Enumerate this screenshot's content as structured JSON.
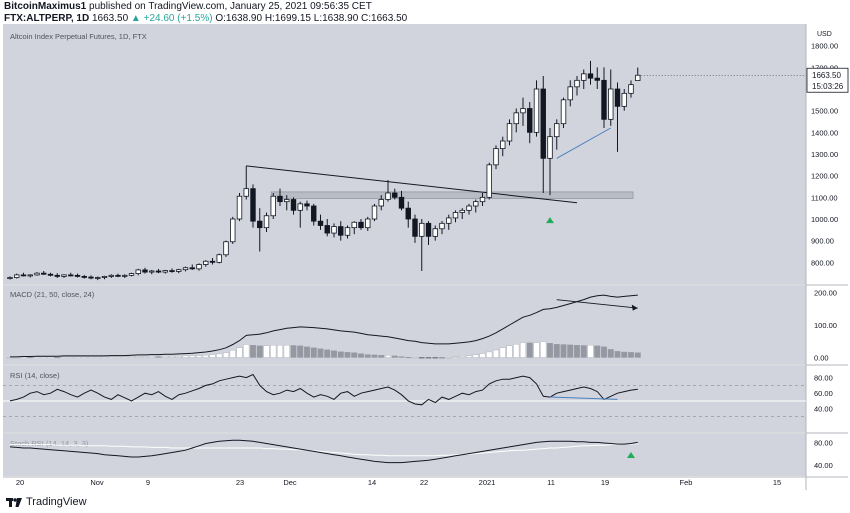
{
  "header": {
    "author": "BitcoinMaximus1",
    "published_text": "published on TradingView.com, January 25, 2021 09:56:35 CET",
    "symbol": "FTX:ALTPERP, 1D",
    "last": "1663.50",
    "change_arrow": "▲",
    "change": "+24.60 (+1.5%)",
    "o_label": "O:",
    "o": "1638.90",
    "h_label": "H:",
    "h": "1699.15",
    "l_label": "L:",
    "l": "1638.90",
    "c_label": "C:",
    "c": "1663.50"
  },
  "footer": {
    "brand": "TradingView"
  },
  "chart_data": [
    {
      "type": "candlestick",
      "title": "Altcoin Index Perpetual Futures, 1D, FTX",
      "currency_label": "USD",
      "ylim": [
        700,
        1900
      ],
      "y_ticks": [
        "800.00",
        "900.00",
        "1000.00",
        "1100.00",
        "1200.00",
        "1300.00",
        "1400.00",
        "1500.00",
        "1600.00",
        "1700.00",
        "1800.00"
      ],
      "price_label": "1663.50",
      "countdown_label": "15:03:26",
      "x_tick_labels": [
        "20",
        "Nov",
        "9",
        "23",
        "Dec",
        "14",
        "22",
        "2021",
        "11",
        "19",
        "Feb",
        "15"
      ],
      "ohlc": [
        [
          725,
          735,
          720,
          730
        ],
        [
          730,
          748,
          725,
          742
        ],
        [
          742,
          752,
          735,
          738
        ],
        [
          738,
          745,
          730,
          742
        ],
        [
          742,
          755,
          738,
          750
        ],
        [
          750,
          760,
          742,
          745
        ],
        [
          745,
          752,
          735,
          740
        ],
        [
          740,
          750,
          728,
          735
        ],
        [
          735,
          745,
          728,
          742
        ],
        [
          742,
          752,
          735,
          740
        ],
        [
          740,
          748,
          730,
          735
        ],
        [
          735,
          742,
          725,
          732
        ],
        [
          732,
          740,
          722,
          728
        ],
        [
          728,
          735,
          718,
          730
        ],
        [
          730,
          738,
          722,
          735
        ],
        [
          735,
          745,
          728,
          740
        ],
        [
          740,
          748,
          732,
          736
        ],
        [
          736,
          745,
          728,
          740
        ],
        [
          740,
          752,
          735,
          748
        ],
        [
          748,
          770,
          740,
          765
        ],
        [
          765,
          775,
          748,
          755
        ],
        [
          755,
          765,
          745,
          760
        ],
        [
          760,
          770,
          750,
          755
        ],
        [
          755,
          765,
          748,
          762
        ],
        [
          762,
          772,
          752,
          758
        ],
        [
          758,
          770,
          750,
          766
        ],
        [
          766,
          780,
          758,
          775
        ],
        [
          775,
          790,
          765,
          770
        ],
        [
          770,
          795,
          762,
          790
        ],
        [
          790,
          810,
          780,
          805
        ],
        [
          805,
          820,
          790,
          800
        ],
        [
          800,
          840,
          795,
          835
        ],
        [
          835,
          900,
          825,
          895
        ],
        [
          895,
          1010,
          885,
          1000
        ],
        [
          1000,
          1120,
          990,
          1105
        ],
        [
          1105,
          1245,
          1090,
          1140
        ],
        [
          1140,
          1160,
          960,
          990
        ],
        [
          990,
          1050,
          850,
          960
        ],
        [
          960,
          1030,
          940,
          1015
        ],
        [
          1015,
          1120,
          1000,
          1105
        ],
        [
          1105,
          1140,
          1060,
          1080
        ],
        [
          1080,
          1110,
          1040,
          1090
        ],
        [
          1090,
          1100,
          1020,
          1040
        ],
        [
          1040,
          1080,
          960,
          1070
        ],
        [
          1070,
          1085,
          1040,
          1060
        ],
        [
          1060,
          1070,
          970,
          990
        ],
        [
          990,
          1020,
          950,
          970
        ],
        [
          970,
          1000,
          920,
          935
        ],
        [
          935,
          980,
          915,
          965
        ],
        [
          965,
          990,
          900,
          925
        ],
        [
          925,
          970,
          910,
          960
        ],
        [
          960,
          990,
          930,
          985
        ],
        [
          985,
          1000,
          950,
          960
        ],
        [
          960,
          1010,
          945,
          1000
        ],
        [
          1000,
          1070,
          990,
          1060
        ],
        [
          1060,
          1110,
          1040,
          1090
        ],
        [
          1090,
          1180,
          1080,
          1120
        ],
        [
          1120,
          1140,
          1090,
          1100
        ],
        [
          1100,
          1130,
          1040,
          1050
        ],
        [
          1050,
          1080,
          960,
          1000
        ],
        [
          1000,
          1020,
          890,
          920
        ],
        [
          920,
          1000,
          760,
          980
        ],
        [
          980,
          990,
          880,
          920
        ],
        [
          920,
          970,
          900,
          955
        ],
        [
          955,
          990,
          930,
          980
        ],
        [
          980,
          1020,
          950,
          1005
        ],
        [
          1005,
          1040,
          985,
          1030
        ],
        [
          1030,
          1050,
          1000,
          1040
        ],
        [
          1040,
          1070,
          1020,
          1060
        ],
        [
          1060,
          1090,
          1030,
          1080
        ],
        [
          1080,
          1120,
          1060,
          1100
        ],
        [
          1100,
          1260,
          1090,
          1250
        ],
        [
          1250,
          1340,
          1230,
          1325
        ],
        [
          1325,
          1380,
          1290,
          1360
        ],
        [
          1360,
          1460,
          1340,
          1440
        ],
        [
          1440,
          1510,
          1400,
          1490
        ],
        [
          1490,
          1560,
          1430,
          1510
        ],
        [
          1510,
          1540,
          1350,
          1400
        ],
        [
          1400,
          1640,
          1380,
          1600
        ],
        [
          1600,
          1660,
          1120,
          1280
        ],
        [
          1280,
          1420,
          1110,
          1380
        ],
        [
          1380,
          1460,
          1320,
          1440
        ],
        [
          1440,
          1560,
          1420,
          1550
        ],
        [
          1550,
          1640,
          1520,
          1610
        ],
        [
          1610,
          1660,
          1570,
          1640
        ],
        [
          1640,
          1690,
          1600,
          1670
        ],
        [
          1670,
          1730,
          1620,
          1650
        ],
        [
          1650,
          1700,
          1600,
          1640
        ],
        [
          1640,
          1700,
          1420,
          1460
        ],
        [
          1460,
          1690,
          1430,
          1600
        ],
        [
          1600,
          1630,
          1310,
          1520
        ],
        [
          1520,
          1600,
          1500,
          1580
        ],
        [
          1580,
          1640,
          1560,
          1620
        ],
        [
          1638.9,
          1699.15,
          1638.9,
          1663.5
        ]
      ]
    },
    {
      "type": "line",
      "title": "MACD (21, 50, close, 24)",
      "ylim": [
        -20,
        220
      ],
      "y_ticks": [
        "200.00",
        "100.00",
        "0.00"
      ],
      "series": [
        {
          "values": [
            2,
            2,
            3,
            3,
            4,
            4,
            4,
            4,
            5,
            5,
            5,
            5,
            5,
            5,
            5,
            6,
            6,
            6,
            7,
            8,
            8,
            9,
            9,
            10,
            10,
            11,
            12,
            13,
            15,
            17,
            20,
            24,
            30,
            40,
            52,
            68,
            70,
            72,
            76,
            82,
            86,
            90,
            92,
            94,
            93,
            92,
            90,
            88,
            85,
            82,
            80,
            78,
            74,
            70,
            68,
            66,
            64,
            60,
            56,
            52,
            50,
            46,
            44,
            42,
            42,
            42,
            44,
            46,
            48,
            52,
            58,
            66,
            76,
            88,
            100,
            112,
            124,
            130,
            138,
            148,
            150,
            154,
            160,
            166,
            172,
            178,
            186,
            190,
            192,
            188,
            186,
            188,
            190,
            192
          ]
        },
        {
          "values": [
            1,
            1,
            1,
            2,
            2,
            2,
            2,
            3,
            3,
            3,
            3,
            3,
            3,
            3,
            3,
            4,
            4,
            4,
            4,
            5,
            5,
            5,
            6,
            6,
            6,
            7,
            7,
            8,
            9,
            10,
            11,
            13,
            15,
            18,
            22,
            28,
            32,
            36,
            40,
            44,
            48,
            52,
            55,
            58,
            60,
            62,
            63,
            64,
            64,
            64,
            64,
            63,
            62,
            61,
            60,
            59,
            57,
            55,
            53,
            51,
            49,
            47,
            45,
            44,
            43,
            42,
            42,
            42,
            43,
            44,
            46,
            49,
            53,
            58,
            64,
            71,
            78,
            85,
            92,
            99,
            106,
            113,
            120,
            127,
            134,
            141,
            148,
            154,
            159,
            163,
            167,
            171,
            174,
            177
          ]
        }
      ]
    },
    {
      "type": "line",
      "title": "RSI (14, close)",
      "ylim": [
        10,
        95
      ],
      "y_ticks": [
        "80.00",
        "60.00",
        "40.00"
      ],
      "series": [
        {
          "values": [
            50,
            52,
            55,
            60,
            62,
            58,
            60,
            65,
            62,
            58,
            55,
            60,
            64,
            60,
            55,
            52,
            58,
            54,
            50,
            55,
            60,
            58,
            62,
            56,
            52,
            58,
            60,
            63,
            66,
            70,
            72,
            76,
            78,
            80,
            82,
            80,
            84,
            70,
            62,
            58,
            60,
            64,
            62,
            66,
            60,
            55,
            58,
            56,
            52,
            60,
            62,
            56,
            60,
            62,
            64,
            66,
            68,
            64,
            58,
            50,
            46,
            45,
            52,
            48,
            55,
            52,
            56,
            60,
            58,
            62,
            64,
            72,
            76,
            78,
            78,
            80,
            82,
            80,
            72,
            56,
            55,
            60,
            62,
            64,
            66,
            68,
            66,
            62,
            52,
            56,
            60,
            62,
            64,
            65
          ]
        }
      ]
    },
    {
      "type": "line",
      "title": "Stoch RSI (14, 14, 3, 3)",
      "ylim": [
        20,
        95
      ],
      "y_ticks": [
        "80.00",
        "40.00"
      ],
      "series": [
        {
          "values": [
            72,
            71,
            70,
            70,
            69,
            68,
            67,
            66,
            65,
            64,
            63,
            62,
            61,
            60,
            58,
            57,
            56,
            55,
            54,
            54,
            55,
            56,
            58,
            60,
            62,
            64,
            66,
            70,
            74,
            78,
            80,
            82,
            83,
            84,
            84,
            83,
            82,
            80,
            78,
            76,
            74,
            72,
            70,
            68,
            66,
            64,
            62,
            60,
            58,
            56,
            54,
            52,
            50,
            48,
            46,
            45,
            44,
            44,
            44,
            45,
            46,
            47,
            48,
            50,
            52,
            54,
            56,
            58,
            60,
            62,
            64,
            66,
            68,
            70,
            72,
            74,
            76,
            78,
            80,
            81,
            82,
            82,
            82,
            82,
            81,
            81,
            80,
            80,
            79,
            78,
            77,
            77,
            78,
            80
          ]
        },
        {
          "values": [
            76,
            76,
            76,
            76,
            76,
            76,
            76,
            75,
            75,
            75,
            75,
            74,
            74,
            74,
            74,
            73,
            73,
            73,
            72,
            72,
            72,
            71,
            71,
            71,
            70,
            70,
            70,
            70,
            70,
            70,
            70,
            70,
            70,
            70,
            70,
            70,
            70,
            70,
            69,
            69,
            68,
            68,
            67,
            67,
            66,
            65,
            64,
            63,
            62,
            61,
            60,
            59,
            58,
            58,
            57,
            57,
            56,
            56,
            56,
            56,
            56,
            56,
            56,
            56,
            57,
            57,
            58,
            58,
            59,
            60,
            61,
            62,
            63,
            64,
            65,
            66,
            66,
            67,
            68,
            69,
            70,
            70,
            71,
            72,
            73,
            74,
            74,
            75,
            75,
            76,
            76,
            77,
            77,
            78
          ]
        }
      ]
    }
  ]
}
